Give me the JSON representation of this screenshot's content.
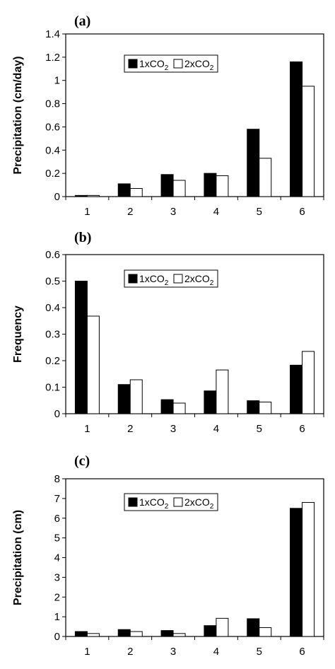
{
  "chart_data": [
    {
      "type": "bar",
      "panel_label": "(a)",
      "categories": [
        "1",
        "2",
        "3",
        "4",
        "5",
        "6"
      ],
      "series": [
        {
          "name_main": "1xCO",
          "name_sub": "2",
          "fill": "#000000",
          "values": [
            0.01,
            0.11,
            0.19,
            0.2,
            0.58,
            1.16
          ]
        },
        {
          "name_main": "2xCO",
          "name_sub": "2",
          "fill": "#ffffff",
          "values": [
            0.01,
            0.07,
            0.14,
            0.18,
            0.33,
            0.95
          ]
        }
      ],
      "ylabel": "Precipitation (cm/day)",
      "ylim": [
        0,
        1.4
      ],
      "yticks": [
        "0",
        "0.2",
        "0.4",
        "0.6",
        "0.8",
        "1",
        "1.2",
        "1.4"
      ],
      "legend": "top-center",
      "grid": false
    },
    {
      "type": "bar",
      "panel_label": "(b)",
      "categories": [
        "1",
        "2",
        "3",
        "4",
        "5",
        "6"
      ],
      "series": [
        {
          "name_main": "1xCO",
          "name_sub": "2",
          "fill": "#000000",
          "values": [
            0.5,
            0.11,
            0.053,
            0.086,
            0.049,
            0.183
          ]
        },
        {
          "name_main": "2xCO",
          "name_sub": "2",
          "fill": "#ffffff",
          "values": [
            0.368,
            0.128,
            0.04,
            0.165,
            0.044,
            0.235
          ]
        }
      ],
      "ylabel": "Frequency",
      "ylim": [
        0,
        0.6
      ],
      "yticks": [
        "0",
        "0.1",
        "0.2",
        "0.3",
        "0.4",
        "0.5",
        "0.6"
      ],
      "legend": "top-center",
      "grid": false
    },
    {
      "type": "bar",
      "panel_label": "(c)",
      "categories": [
        "1",
        "2",
        "3",
        "4",
        "5",
        "6"
      ],
      "series": [
        {
          "name_main": "1xCO",
          "name_sub": "2",
          "fill": "#000000",
          "values": [
            0.25,
            0.35,
            0.3,
            0.55,
            0.9,
            6.5
          ]
        },
        {
          "name_main": "2xCO",
          "name_sub": "2",
          "fill": "#ffffff",
          "values": [
            0.15,
            0.25,
            0.15,
            0.92,
            0.45,
            6.8
          ]
        }
      ],
      "ylabel": "Precipitation (cm)",
      "ylim": [
        0,
        8
      ],
      "yticks": [
        "0",
        "1",
        "2",
        "3",
        "4",
        "5",
        "6",
        "7",
        "8"
      ],
      "legend": "top-center",
      "grid": false
    }
  ]
}
